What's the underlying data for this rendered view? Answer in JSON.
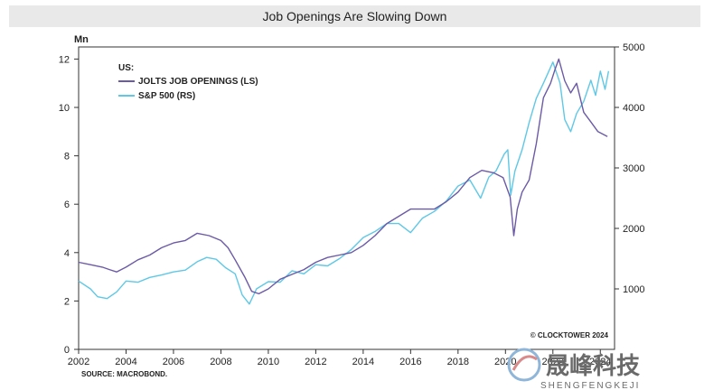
{
  "chart_data": {
    "type": "line",
    "title": "Job Openings Are Slowing Down",
    "y_left_unit": "Mn",
    "legend_title": "US:",
    "ylim_left": [
      0,
      12.5
    ],
    "ylim_right": [
      0,
      5000
    ],
    "xlim": [
      2002,
      2024.6
    ],
    "x_ticks": [
      "2002",
      "2004",
      "2006",
      "2008",
      "2010",
      "2012",
      "2014",
      "2016",
      "2018",
      "2020",
      "2022",
      "2024"
    ],
    "y_left_ticks": [
      "0",
      "2",
      "4",
      "6",
      "8",
      "10",
      "12"
    ],
    "y_right_ticks": [
      "1000",
      "2000",
      "3000",
      "4000",
      "5000"
    ],
    "grid": false,
    "legend_position": "top-left",
    "series": [
      {
        "name": "JOLTS JOB OPENINGS (LS)",
        "axis": "left",
        "color": "#6b5aa6",
        "x": [
          2002.0,
          2002.5,
          2003.0,
          2003.3,
          2003.6,
          2004.0,
          2004.5,
          2005.0,
          2005.5,
          2006.0,
          2006.5,
          2007.0,
          2007.5,
          2008.0,
          2008.3,
          2008.6,
          2009.0,
          2009.3,
          2009.6,
          2010.0,
          2010.5,
          2011.0,
          2011.5,
          2012.0,
          2012.5,
          2013.0,
          2013.5,
          2014.0,
          2014.5,
          2015.0,
          2015.5,
          2016.0,
          2016.5,
          2017.0,
          2017.5,
          2018.0,
          2018.5,
          2019.0,
          2019.5,
          2019.9,
          2020.2,
          2020.35,
          2020.5,
          2020.7,
          2021.0,
          2021.3,
          2021.6,
          2021.9,
          2022.1,
          2022.25,
          2022.5,
          2022.75,
          2023.0,
          2023.3,
          2023.6,
          2023.9,
          2024.1,
          2024.3
        ],
        "values": [
          3.6,
          3.5,
          3.4,
          3.3,
          3.2,
          3.4,
          3.7,
          3.9,
          4.2,
          4.4,
          4.5,
          4.8,
          4.7,
          4.5,
          4.2,
          3.7,
          3.0,
          2.4,
          2.3,
          2.5,
          2.9,
          3.1,
          3.3,
          3.6,
          3.8,
          3.9,
          4.0,
          4.3,
          4.7,
          5.2,
          5.5,
          5.8,
          5.8,
          5.8,
          6.1,
          6.5,
          7.1,
          7.4,
          7.3,
          7.1,
          6.3,
          4.7,
          5.8,
          6.5,
          7.0,
          8.5,
          10.4,
          11.0,
          11.6,
          12.0,
          11.1,
          10.6,
          11.0,
          9.8,
          9.4,
          9.0,
          8.9,
          8.8
        ]
      },
      {
        "name": "S&P 500 (RS)",
        "axis": "right",
        "color": "#5ec8e6",
        "x": [
          2002.0,
          2002.5,
          2002.8,
          2003.2,
          2003.6,
          2004.0,
          2004.5,
          2005.0,
          2005.5,
          2006.0,
          2006.5,
          2007.0,
          2007.4,
          2007.8,
          2008.2,
          2008.6,
          2008.9,
          2009.2,
          2009.5,
          2010.0,
          2010.5,
          2011.0,
          2011.5,
          2012.0,
          2012.5,
          2013.0,
          2013.5,
          2014.0,
          2014.5,
          2015.0,
          2015.5,
          2016.0,
          2016.5,
          2017.0,
          2017.5,
          2018.0,
          2018.5,
          2018.95,
          2019.3,
          2019.6,
          2019.95,
          2020.1,
          2020.22,
          2020.4,
          2020.7,
          2021.0,
          2021.3,
          2021.6,
          2022.0,
          2022.3,
          2022.5,
          2022.75,
          2023.0,
          2023.3,
          2023.6,
          2023.8,
          2024.0,
          2024.2,
          2024.35
        ],
        "values": [
          1130,
          1000,
          870,
          840,
          950,
          1130,
          1110,
          1190,
          1230,
          1280,
          1310,
          1450,
          1520,
          1490,
          1350,
          1250,
          900,
          750,
          1000,
          1120,
          1110,
          1300,
          1250,
          1400,
          1380,
          1500,
          1650,
          1850,
          1950,
          2080,
          2080,
          1930,
          2170,
          2280,
          2450,
          2700,
          2800,
          2500,
          2850,
          2950,
          3230,
          3300,
          2550,
          2950,
          3300,
          3750,
          4150,
          4400,
          4750,
          4400,
          3800,
          3600,
          3900,
          4100,
          4450,
          4200,
          4600,
          4300,
          4600
        ]
      }
    ],
    "annotations": [
      "© CLOCKTOWER 2024"
    ],
    "source": "SOURCE: MACROBOND."
  },
  "watermark": {
    "cn": "晟峰科技",
    "en": "SHENGFENGKEJI"
  }
}
